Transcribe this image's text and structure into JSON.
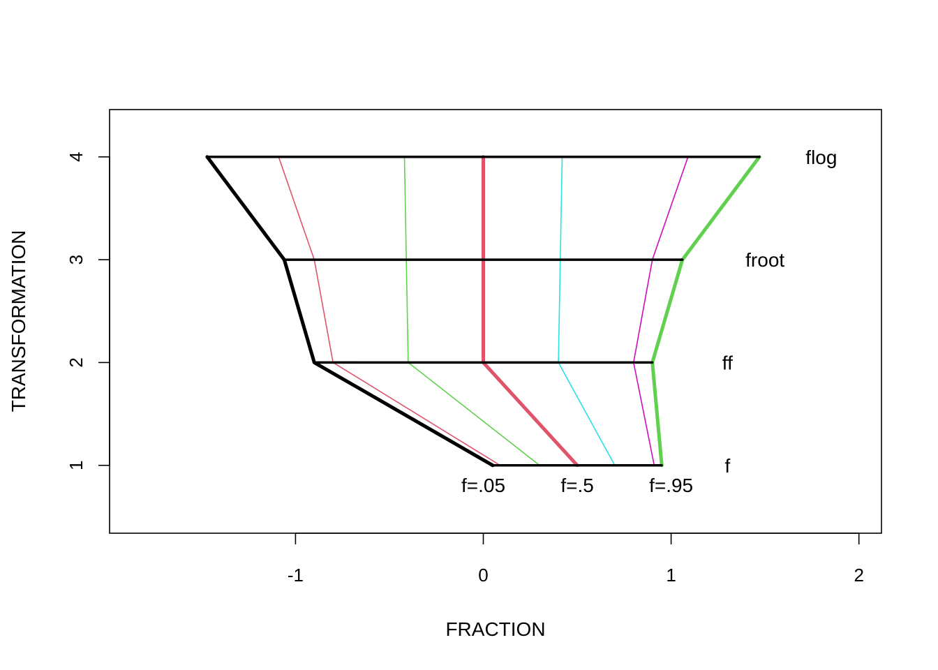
{
  "chart_data": {
    "type": "line",
    "xlabel": "FRACTION",
    "ylabel": "TRANSFORMATION",
    "xlim": [
      -1.99,
      2.12
    ],
    "ylim": [
      0.34,
      4.46
    ],
    "x_ticks": [
      -1,
      0,
      1,
      2
    ],
    "x_tick_labels": [
      "-1",
      "0",
      "1",
      "2"
    ],
    "y_ticks": [
      1,
      2,
      3,
      4
    ],
    "y_tick_labels": [
      "1",
      "2",
      "3",
      "4"
    ],
    "grid": false,
    "levels": [
      {
        "y": 1,
        "label": "f",
        "label_x": 1.3,
        "xmin": 0.05,
        "xmax": 0.95
      },
      {
        "y": 2,
        "label": "ff",
        "label_x": 1.3,
        "xmin": -0.9,
        "xmax": 0.9
      },
      {
        "y": 3,
        "label": "froot",
        "label_x": 1.5,
        "xmin": -1.06,
        "xmax": 1.06
      },
      {
        "y": 4,
        "label": "flog",
        "label_x": 1.8,
        "xmin": -1.47,
        "xmax": 1.47
      }
    ],
    "series": [
      {
        "color": "#000000",
        "width": 5,
        "points": [
          [
            0.05,
            1
          ],
          [
            -0.9,
            2
          ],
          [
            -1.06,
            3
          ],
          [
            -1.47,
            4
          ]
        ]
      },
      {
        "color": "#DF536B",
        "width": 1.6,
        "points": [
          [
            0.09,
            1
          ],
          [
            -0.8,
            2
          ],
          [
            -0.9,
            3
          ],
          [
            -1.09,
            4
          ]
        ]
      },
      {
        "color": "#61D04F",
        "width": 1.6,
        "points": [
          [
            0.3,
            1
          ],
          [
            -0.4,
            2
          ],
          [
            -0.41,
            3
          ],
          [
            -0.42,
            4
          ]
        ]
      },
      {
        "color": "#DF536B",
        "width": 5,
        "points": [
          [
            0.5,
            1
          ],
          [
            0.0,
            2
          ],
          [
            0.0,
            3
          ],
          [
            0.0,
            4
          ]
        ]
      },
      {
        "color": "#28E2E5",
        "width": 1.6,
        "points": [
          [
            0.7,
            1
          ],
          [
            0.4,
            2
          ],
          [
            0.41,
            3
          ],
          [
            0.42,
            4
          ]
        ]
      },
      {
        "color": "#CD0BBC",
        "width": 1.6,
        "points": [
          [
            0.91,
            1
          ],
          [
            0.8,
            2
          ],
          [
            0.9,
            3
          ],
          [
            1.09,
            4
          ]
        ]
      },
      {
        "color": "#61D04F",
        "width": 5,
        "points": [
          [
            0.95,
            1
          ],
          [
            0.9,
            2
          ],
          [
            1.06,
            3
          ],
          [
            1.47,
            4
          ]
        ]
      }
    ],
    "annotations": [
      {
        "text": "f=.05",
        "x": 0.0,
        "y": 0.81
      },
      {
        "text": "f=.5",
        "x": 0.5,
        "y": 0.81
      },
      {
        "text": "f=.95",
        "x": 1.0,
        "y": 0.81
      }
    ]
  }
}
